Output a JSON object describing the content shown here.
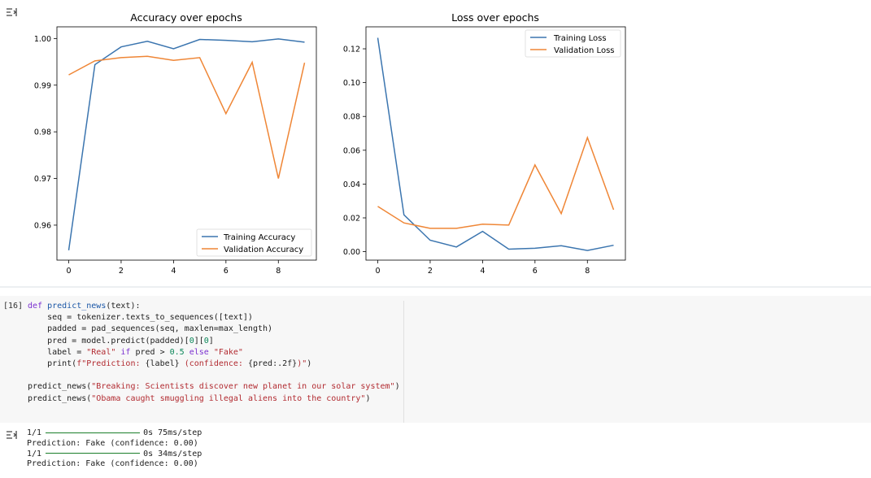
{
  "colors": {
    "training": "#3b75af",
    "validation": "#ef8636"
  },
  "chart_data": [
    {
      "type": "line",
      "title": "Accuracy over epochs",
      "x": [
        0,
        1,
        2,
        3,
        4,
        5,
        6,
        7,
        8,
        9
      ],
      "xticks": [
        "0",
        "2",
        "4",
        "6",
        "8"
      ],
      "yticks": [
        "0.96",
        "0.97",
        "0.98",
        "0.99",
        "1.00"
      ],
      "ylim": [
        0.9525,
        1.0025
      ],
      "xlim": [
        -0.45,
        9.45
      ],
      "legend_position": "lower-right",
      "series": [
        {
          "name": "Training Accuracy",
          "values": [
            0.9546,
            0.9944,
            0.9982,
            0.9994,
            0.9978,
            0.9998,
            0.9996,
            0.9993,
            0.9999,
            0.9992
          ]
        },
        {
          "name": "Validation Accuracy",
          "values": [
            0.9922,
            0.9952,
            0.9959,
            0.9962,
            0.9953,
            0.9959,
            0.9839,
            0.9949,
            0.97,
            0.9948
          ]
        }
      ]
    },
    {
      "type": "line",
      "title": "Loss over epochs",
      "x": [
        0,
        1,
        2,
        3,
        4,
        5,
        6,
        7,
        8,
        9
      ],
      "xticks": [
        "0",
        "2",
        "4",
        "6",
        "8"
      ],
      "yticks": [
        "0.00",
        "0.02",
        "0.04",
        "0.06",
        "0.08",
        "0.10",
        "0.12"
      ],
      "ylim": [
        -0.005,
        0.133
      ],
      "xlim": [
        -0.45,
        9.45
      ],
      "legend_position": "upper-right",
      "series": [
        {
          "name": "Training Loss",
          "values": [
            0.1265,
            0.0218,
            0.0068,
            0.0028,
            0.012,
            0.0015,
            0.002,
            0.0035,
            0.0007,
            0.0038
          ]
        },
        {
          "name": "Validation Loss",
          "values": [
            0.0268,
            0.017,
            0.0138,
            0.0138,
            0.0163,
            0.0157,
            0.0513,
            0.0225,
            0.0675,
            0.0248
          ]
        }
      ]
    }
  ],
  "cell": {
    "execution_count": "[16]",
    "code_lines": [
      [
        [
          "kw",
          "def "
        ],
        [
          "fn",
          "predict_news"
        ],
        [
          "",
          "(text):"
        ]
      ],
      [
        [
          "",
          "    seq = tokenizer.texts_to_sequences([text])"
        ]
      ],
      [
        [
          "",
          "    padded = pad_sequences(seq, maxlen=max_length)"
        ]
      ],
      [
        [
          "",
          "    pred = model.predict(padded)["
        ],
        [
          "num",
          "0"
        ],
        [
          "",
          "]["
        ],
        [
          "num",
          "0"
        ],
        [
          "",
          "]"
        ]
      ],
      [
        [
          "",
          "    label = "
        ],
        [
          "str",
          "\"Real\""
        ],
        [
          "kw",
          " if "
        ],
        [
          "",
          "pred > "
        ],
        [
          "num",
          "0.5"
        ],
        [
          "kw",
          " else "
        ],
        [
          "str",
          "\"Fake\""
        ]
      ],
      [
        [
          "",
          "    print("
        ],
        [
          "str",
          "f\"Prediction: "
        ],
        [
          "",
          "{label}"
        ],
        [
          "str",
          " (confidence: "
        ],
        [
          "",
          "{pred:.2f}"
        ],
        [
          "str",
          ")\""
        ],
        [
          "",
          ")"
        ]
      ],
      [
        [
          "",
          ""
        ]
      ],
      [
        [
          "",
          "predict_news("
        ],
        [
          "str",
          "\"Breaking: Scientists discover new planet in our solar system\""
        ],
        [
          "",
          ")"
        ]
      ],
      [
        [
          "",
          "predict_news("
        ],
        [
          "str",
          "\"Obama caught smuggling illegal aliens into the country\""
        ],
        [
          "",
          ")"
        ]
      ]
    ]
  },
  "output": {
    "step1_count": "1/1",
    "step1_time": "0s 75ms/step",
    "prediction1": "Prediction: Fake (confidence: 0.00)",
    "step2_count": "1/1",
    "step2_time": "0s 34ms/step",
    "prediction2": "Prediction: Fake (confidence: 0.00)"
  }
}
